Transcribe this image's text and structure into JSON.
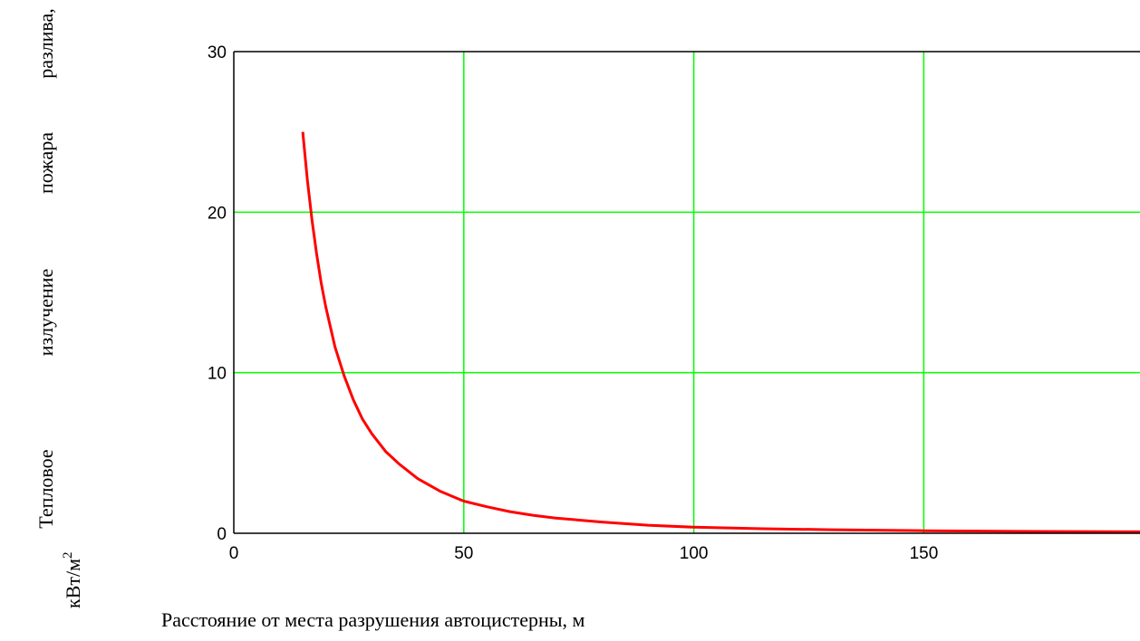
{
  "chart_data": {
    "type": "line",
    "title": "",
    "xlabel": "Расстояние от места разрушения автоцистерны, м",
    "ylabel_line1_words": [
      "Тепловое",
      "излучение",
      "пожара",
      "разлива,"
    ],
    "ylabel_line2": "кВт/м",
    "ylabel_line2_sup": "2",
    "xlim": [
      0,
      197
    ],
    "ylim": [
      0,
      30
    ],
    "x_ticks": [
      0,
      50,
      100,
      150
    ],
    "x_tick_labels": [
      "0",
      "50",
      "100",
      "150"
    ],
    "y_ticks": [
      0,
      10,
      20,
      30
    ],
    "y_tick_labels": [
      "0",
      "10",
      "20",
      "30"
    ],
    "grid": true,
    "colors": {
      "grid": "#00ff00",
      "series": "#ff0000",
      "axes": "#000000"
    },
    "series": [
      {
        "x": [
          15,
          16,
          17,
          18,
          19,
          20,
          22,
          24,
          26,
          28,
          30,
          33,
          36,
          40,
          45,
          50,
          55,
          60,
          65,
          70,
          80,
          90,
          100,
          115,
          130,
          150,
          170,
          197
        ],
        "y": [
          25.0,
          22.0,
          19.5,
          17.4,
          15.6,
          14.1,
          11.6,
          9.8,
          8.3,
          7.1,
          6.2,
          5.1,
          4.3,
          3.4,
          2.6,
          2.0,
          1.65,
          1.35,
          1.12,
          0.95,
          0.7,
          0.5,
          0.38,
          0.28,
          0.22,
          0.16,
          0.12,
          0.09
        ]
      }
    ]
  }
}
